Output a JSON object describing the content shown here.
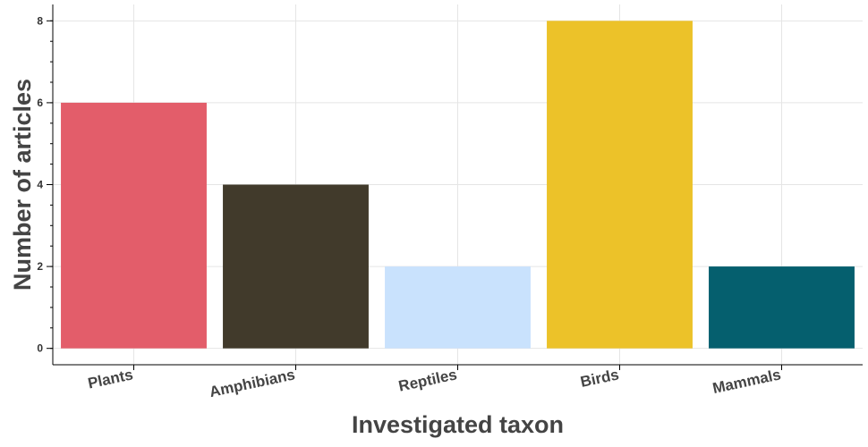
{
  "chart_data": {
    "type": "bar",
    "categories": [
      "Plants",
      "Amphibians",
      "Reptiles",
      "Birds",
      "Mammals"
    ],
    "values": [
      6,
      4,
      2,
      8,
      2
    ],
    "colors": [
      "#e35d6a",
      "#413a2b",
      "#c9e2fd",
      "#ecc229",
      "#055f6e"
    ],
    "xlabel": "Investigated taxon",
    "ylabel": "Number of articles",
    "ylim": [
      -0.4,
      8.4
    ],
    "yticks": [
      0,
      2,
      4,
      6,
      8
    ],
    "y_minor_step": 0.5,
    "grid": true,
    "legend": "none"
  }
}
